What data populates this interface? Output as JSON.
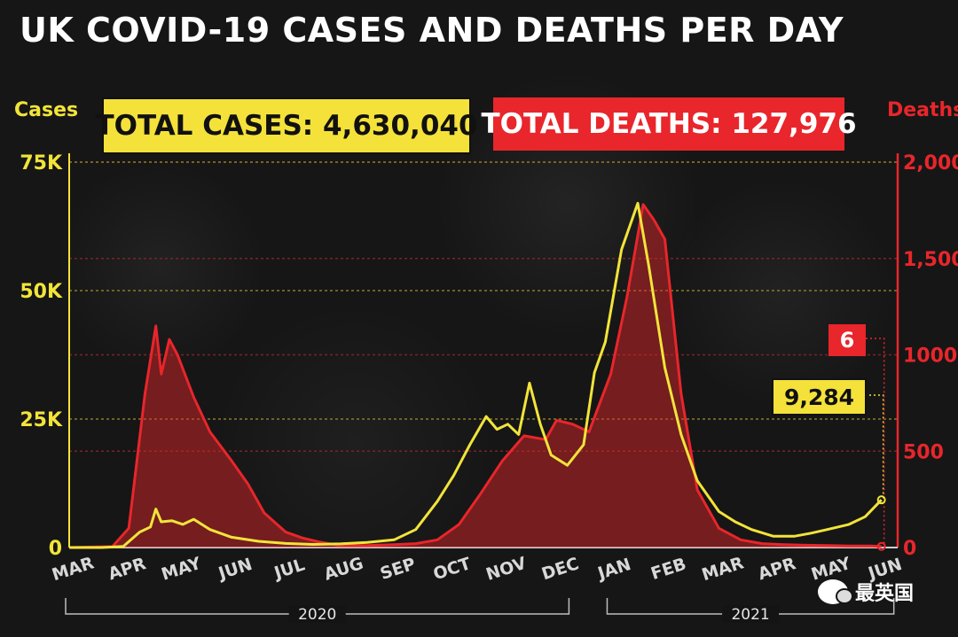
{
  "title": "UK COVID-19 CASES AND DEATHS PER DAY",
  "badges": {
    "total_cases": "TOTAL CASES: 4,630,040",
    "total_deaths": "TOTAL DEATHS: 127,976",
    "last_cases": "9,284",
    "last_deaths": "6"
  },
  "watermark": "最英国",
  "colors": {
    "cases": "#f2e43a",
    "deaths": "#e8262b",
    "grid_cases": "#8a7a2a",
    "grid_deaths": "#7a2424"
  },
  "chart_data": {
    "type": "line",
    "x_unit": "month index (0 = start of March 2020)",
    "left_axis": {
      "label": "Cases",
      "ylim": [
        0,
        75000
      ],
      "ticks": [
        0,
        25000,
        50000,
        75000
      ],
      "tick_labels": [
        "0",
        "25K",
        "50K",
        "75K"
      ]
    },
    "right_axis": {
      "label": "Deaths",
      "ylim": [
        0,
        2000
      ],
      "ticks": [
        0,
        500,
        1000,
        1500,
        2000
      ],
      "tick_labels": [
        "0",
        "500",
        "1000",
        "1,500",
        "2,000"
      ]
    },
    "months": [
      "MAR",
      "APR",
      "MAY",
      "JUN",
      "JUL",
      "AUG",
      "SEP",
      "OCT",
      "NOV",
      "DEC",
      "JAN",
      "FEB",
      "MAR",
      "APR",
      "MAY",
      "JUN"
    ],
    "years": [
      {
        "label": "2020",
        "from": 0,
        "to": 9
      },
      {
        "label": "2021",
        "from": 10,
        "to": 15
      }
    ],
    "grid": true,
    "series": [
      {
        "name": "Cases",
        "axis": "left",
        "points": [
          [
            0,
            0
          ],
          [
            0.6,
            0
          ],
          [
            1,
            200
          ],
          [
            1.3,
            3000
          ],
          [
            1.5,
            4000
          ],
          [
            1.6,
            7500
          ],
          [
            1.7,
            5000
          ],
          [
            1.9,
            5200
          ],
          [
            2.1,
            4500
          ],
          [
            2.3,
            5500
          ],
          [
            2.6,
            3500
          ],
          [
            3,
            2000
          ],
          [
            3.5,
            1200
          ],
          [
            4,
            800
          ],
          [
            4.5,
            600
          ],
          [
            5,
            700
          ],
          [
            5.5,
            1000
          ],
          [
            6,
            1500
          ],
          [
            6.4,
            3500
          ],
          [
            6.8,
            9000
          ],
          [
            7.1,
            14000
          ],
          [
            7.4,
            20000
          ],
          [
            7.7,
            25500
          ],
          [
            7.9,
            23000
          ],
          [
            8.1,
            24000
          ],
          [
            8.3,
            22000
          ],
          [
            8.5,
            32000
          ],
          [
            8.7,
            24000
          ],
          [
            8.9,
            18000
          ],
          [
            9.2,
            16000
          ],
          [
            9.5,
            20000
          ],
          [
            9.7,
            34000
          ],
          [
            9.9,
            40000
          ],
          [
            10.2,
            58000
          ],
          [
            10.5,
            67000
          ],
          [
            10.7,
            55000
          ],
          [
            11,
            35000
          ],
          [
            11.3,
            22000
          ],
          [
            11.6,
            13000
          ],
          [
            12,
            7000
          ],
          [
            12.3,
            5000
          ],
          [
            12.6,
            3500
          ],
          [
            13,
            2200
          ],
          [
            13.4,
            2200
          ],
          [
            13.7,
            2800
          ],
          [
            14,
            3500
          ],
          [
            14.4,
            4500
          ],
          [
            14.7,
            6000
          ],
          [
            15,
            9284
          ]
        ]
      },
      {
        "name": "Deaths",
        "axis": "right",
        "points": [
          [
            0,
            0
          ],
          [
            0.8,
            5
          ],
          [
            1.1,
            100
          ],
          [
            1.4,
            800
          ],
          [
            1.6,
            1150
          ],
          [
            1.7,
            900
          ],
          [
            1.85,
            1080
          ],
          [
            2,
            1000
          ],
          [
            2.3,
            780
          ],
          [
            2.6,
            600
          ],
          [
            3,
            450
          ],
          [
            3.3,
            330
          ],
          [
            3.6,
            180
          ],
          [
            4,
            80
          ],
          [
            4.3,
            50
          ],
          [
            4.6,
            30
          ],
          [
            5,
            10
          ],
          [
            5.5,
            10
          ],
          [
            6,
            15
          ],
          [
            6.4,
            20
          ],
          [
            6.8,
            40
          ],
          [
            7.2,
            120
          ],
          [
            7.6,
            280
          ],
          [
            8,
            450
          ],
          [
            8.4,
            580
          ],
          [
            8.8,
            560
          ],
          [
            9,
            660
          ],
          [
            9.3,
            640
          ],
          [
            9.6,
            600
          ],
          [
            10,
            900
          ],
          [
            10.3,
            1300
          ],
          [
            10.6,
            1780
          ],
          [
            10.8,
            1700
          ],
          [
            11,
            1600
          ],
          [
            11.3,
            800
          ],
          [
            11.6,
            300
          ],
          [
            12,
            100
          ],
          [
            12.4,
            40
          ],
          [
            12.8,
            20
          ],
          [
            13.2,
            15
          ],
          [
            13.6,
            12
          ],
          [
            14,
            10
          ],
          [
            14.4,
            8
          ],
          [
            14.8,
            8
          ],
          [
            15,
            6
          ]
        ]
      }
    ]
  }
}
